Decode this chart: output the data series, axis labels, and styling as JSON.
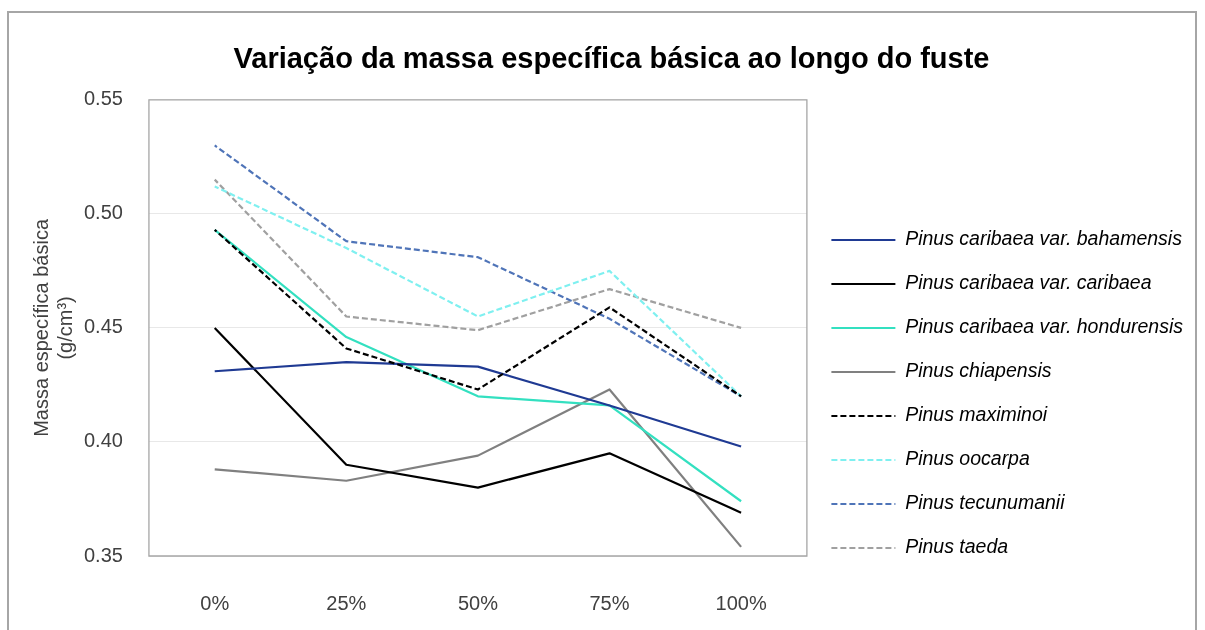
{
  "chart_data": {
    "type": "line",
    "title": "Variação da massa específica básica ao longo do fuste",
    "ylabel": "Massa específica básica (g/cm³)",
    "categories": [
      "0%",
      "25%",
      "50%",
      "75%",
      "100%"
    ],
    "ylim": [
      0.35,
      0.55
    ],
    "yticks": [
      0.35,
      {
        "value": 0.4,
        "label": "0.40"
      },
      0.45,
      {
        "value": 0.5,
        "label": "0.50"
      },
      0.55
    ],
    "grid": "y",
    "legend": "right",
    "series": [
      {
        "name": "Pinus caribaea var. bahamensis",
        "color": "#1f3a93",
        "line_style": "solid",
        "values": [
          0.431,
          0.435,
          0.433,
          0.416,
          0.398
        ]
      },
      {
        "name": "Pinus caribaea var. caribaea",
        "color": "#000000",
        "line_style": "solid",
        "values": [
          0.45,
          0.39,
          0.38,
          0.395,
          0.369
        ]
      },
      {
        "name": "Pinus caribaea var. hondurensis",
        "color": "#33e0c0",
        "line_style": "solid",
        "values": [
          0.493,
          0.446,
          0.42,
          0.416,
          0.374
        ]
      },
      {
        "name": "Pinus chiapensis",
        "color": "#808080",
        "line_style": "solid",
        "values": [
          0.388,
          0.383,
          0.394,
          0.423,
          0.354
        ]
      },
      {
        "name": "Pinus maximinoi",
        "color": "#000000",
        "line_style": "dashed",
        "values": [
          0.493,
          0.441,
          0.423,
          0.459,
          0.42
        ]
      },
      {
        "name": "Pinus oocarpa",
        "color": "#7ff0f0",
        "line_style": "dashed",
        "values": [
          0.512,
          0.485,
          0.455,
          0.475,
          0.42
        ]
      },
      {
        "name": "Pinus tecunumanii",
        "color": "#4f74b8",
        "line_style": "dashed",
        "values": [
          0.53,
          0.488,
          0.481,
          0.454,
          0.42
        ]
      },
      {
        "name": "Pinus taeda",
        "color": "#a0a0a0",
        "line_style": "dashed",
        "values": [
          0.515,
          0.455,
          0.449,
          0.467,
          0.45
        ]
      }
    ]
  }
}
